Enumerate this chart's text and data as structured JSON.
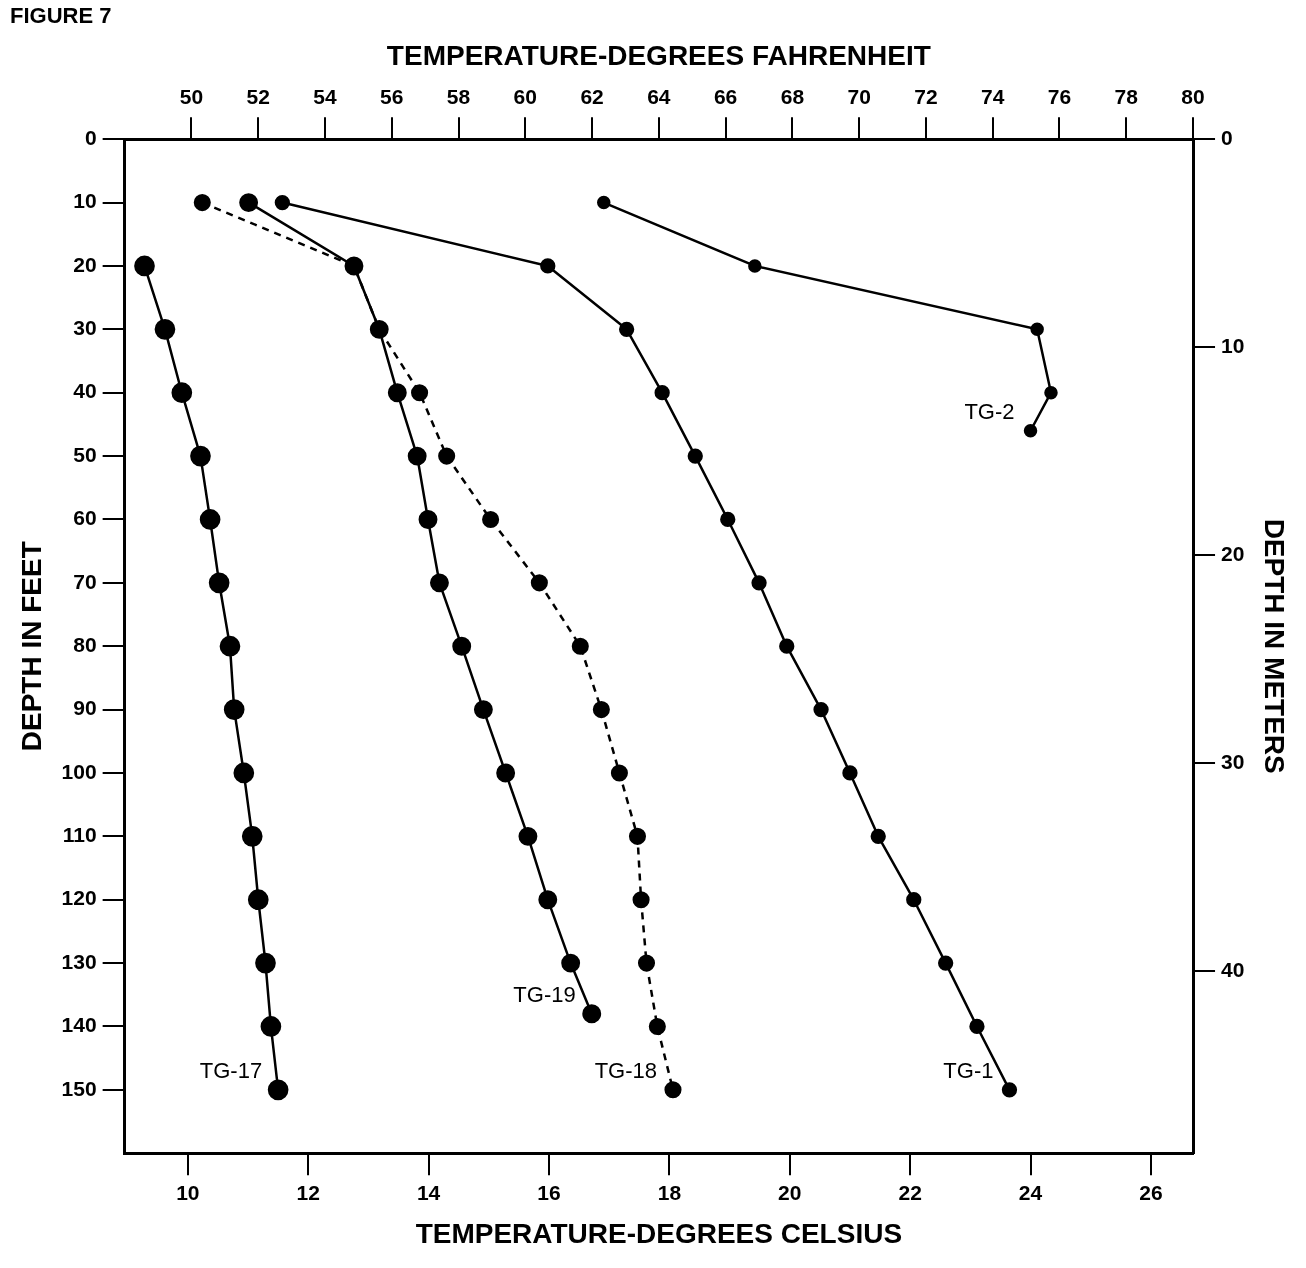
{
  "chart_data": {
    "type": "line",
    "title": "FIGURE 7",
    "xlabel": "TEMPERATURE-DEGREES CELSIUS",
    "x2label": "TEMPERATURE-DEGREES FAHRENHEIT",
    "ylabel": "DEPTH IN FEET",
    "y2label": "DEPTH IN METERS",
    "xlim": [
      8.95,
      26.7
    ],
    "xticks": [
      10,
      12,
      14,
      16,
      18,
      20,
      22,
      24,
      26
    ],
    "x2lim": [
      48,
      80
    ],
    "x2ticks": [
      50,
      52,
      54,
      56,
      58,
      60,
      62,
      64,
      66,
      68,
      70,
      72,
      74,
      76,
      78,
      80
    ],
    "ylim": [
      160,
      0
    ],
    "yticks": [
      0,
      10,
      20,
      30,
      40,
      50,
      60,
      70,
      80,
      90,
      100,
      110,
      120,
      130,
      140,
      150
    ],
    "y2lim": [
      48.77,
      0
    ],
    "y2ticks": [
      0,
      10,
      20,
      30,
      40
    ],
    "grid": false,
    "legend": false,
    "marker": "circle",
    "line_style": "solid",
    "series": [
      {
        "name": "TG-17",
        "color": "#000000",
        "x": [
          9.28,
          9.62,
          9.9,
          10.21,
          10.37,
          10.52,
          10.7,
          10.77,
          10.93,
          11.07,
          11.17,
          11.29,
          11.38,
          11.5
        ],
        "values": [
          20,
          30,
          40,
          50,
          60,
          70,
          80,
          90,
          100,
          110,
          120,
          130,
          140,
          150
        ]
      },
      {
        "name": "TG-19",
        "color": "#000000",
        "x": [
          11.01,
          12.76,
          13.18,
          13.48,
          13.81,
          13.99,
          14.18,
          14.55,
          14.91,
          15.28,
          15.65,
          15.98,
          16.36,
          16.71
        ],
        "values": [
          10,
          20,
          30,
          40,
          50,
          60,
          70,
          80,
          90,
          100,
          110,
          120,
          130,
          138
        ]
      },
      {
        "name": "TG-18",
        "color": "#000000",
        "line_style": "dashed",
        "x": [
          10.24,
          12.76,
          13.18,
          13.85,
          14.3,
          15.03,
          15.84,
          16.52,
          16.87,
          17.17,
          17.47,
          17.53,
          17.62,
          17.8,
          18.06
        ],
        "values": [
          10,
          20,
          30,
          40,
          50,
          60,
          70,
          80,
          90,
          100,
          110,
          120,
          130,
          140,
          150
        ]
      },
      {
        "name": "TG-1",
        "color": "#000000",
        "x": [
          11.57,
          15.98,
          17.29,
          17.88,
          18.43,
          18.97,
          19.49,
          19.95,
          20.52,
          21.0,
          21.47,
          22.06,
          22.59,
          23.11,
          23.65
        ],
        "values": [
          10,
          20,
          30,
          40,
          50,
          60,
          70,
          80,
          90,
          100,
          110,
          120,
          130,
          140,
          150
        ]
      },
      {
        "name": "TG-2",
        "color": "#000000",
        "x": [
          16.91,
          19.42,
          24.11,
          24.34,
          24.0
        ],
        "values": [
          10,
          20,
          30,
          40,
          46
        ]
      }
    ]
  }
}
